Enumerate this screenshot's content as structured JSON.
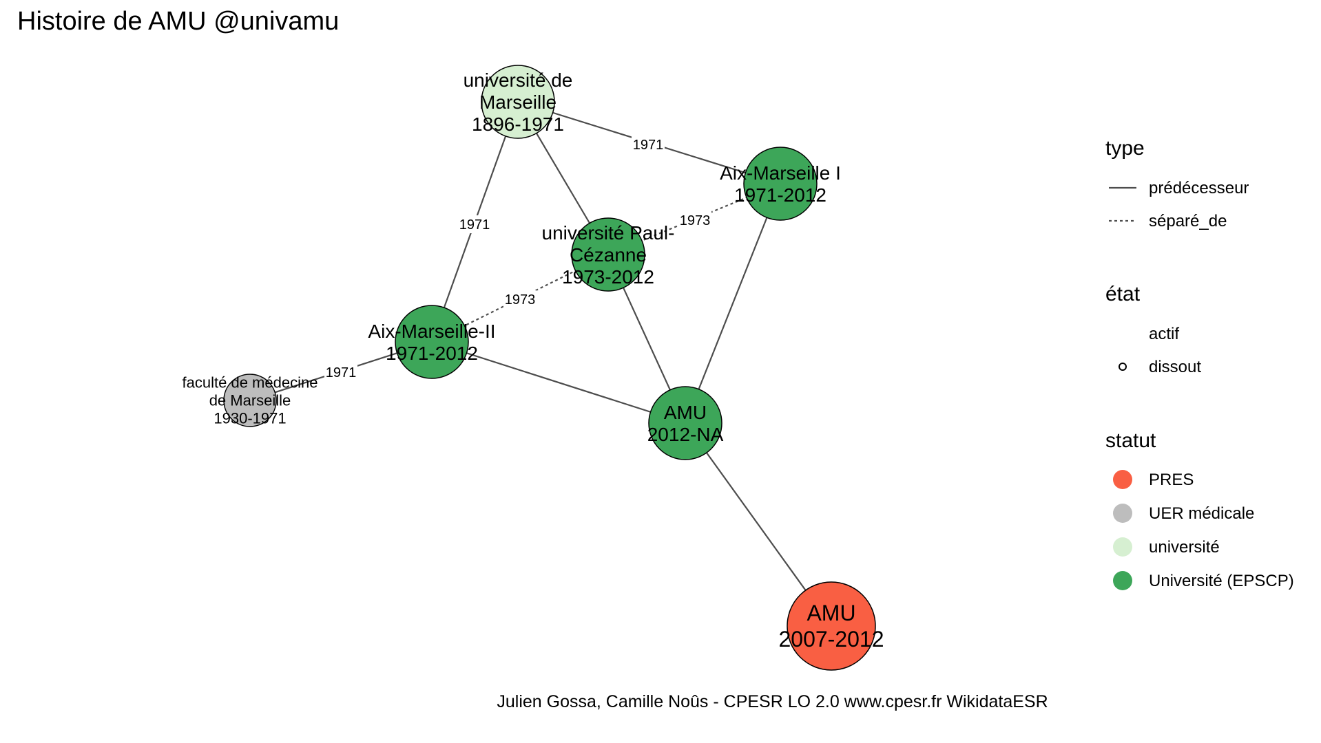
{
  "title": "Histoire de AMU @univamu",
  "caption": "Julien Gossa, Camille Noûs - CPESR LO 2.0 www.cpesr.fr WikidataESR",
  "colors": {
    "PRES": "#f95f43",
    "UER médicale": "#bdbdbd",
    "université": "#d6efd1",
    "Université (EPSCP)": "#3da659",
    "edge": "#4d4d4d"
  },
  "nodes": [
    {
      "id": "udm",
      "label": [
        "université de",
        "Marseille",
        "1896-1971"
      ],
      "statut": "université",
      "etat": "dissout"
    },
    {
      "id": "am1",
      "label": [
        "Aix-Marseille I",
        "1971-2012"
      ],
      "statut": "Université (EPSCP)",
      "etat": "dissout"
    },
    {
      "id": "upc",
      "label": [
        "université Paul-",
        "Cézanne",
        "1973-2012"
      ],
      "statut": "Université (EPSCP)",
      "etat": "dissout"
    },
    {
      "id": "am2",
      "label": [
        "Aix-Marseille-II",
        "1971-2012"
      ],
      "statut": "Université (EPSCP)",
      "etat": "dissout"
    },
    {
      "id": "fmm",
      "label": [
        "faculté de médecine",
        "de Marseille",
        "1930-1971"
      ],
      "statut": "UER médicale",
      "etat": "dissout"
    },
    {
      "id": "amu",
      "label": [
        "AMU",
        "2012-NA"
      ],
      "statut": "Université (EPSCP)",
      "etat": "actif"
    },
    {
      "id": "pres",
      "label": [
        "AMU",
        "2007-2012"
      ],
      "statut": "PRES",
      "etat": "dissout"
    }
  ],
  "edges": [
    {
      "from": "udm",
      "to": "am1",
      "type": "prédécesseur",
      "label": "1971"
    },
    {
      "from": "udm",
      "to": "am2",
      "type": "prédécesseur",
      "label": "1971"
    },
    {
      "from": "udm",
      "to": "upc",
      "type": "prédécesseur",
      "label": ""
    },
    {
      "from": "upc",
      "to": "am1",
      "type": "séparé_de",
      "label": "1973"
    },
    {
      "from": "am2",
      "to": "upc",
      "type": "séparé_de",
      "label": "1973"
    },
    {
      "from": "fmm",
      "to": "am2",
      "type": "prédécesseur",
      "label": "1971"
    },
    {
      "from": "am2",
      "to": "amu",
      "type": "prédécesseur",
      "label": ""
    },
    {
      "from": "upc",
      "to": "amu",
      "type": "prédécesseur",
      "label": ""
    },
    {
      "from": "am1",
      "to": "amu",
      "type": "prédécesseur",
      "label": ""
    },
    {
      "from": "amu",
      "to": "pres",
      "type": "prédécesseur",
      "label": ""
    }
  ],
  "legend": {
    "type": {
      "title": "type",
      "items": [
        "prédécesseur",
        "séparé_de"
      ]
    },
    "etat": {
      "title": "état",
      "items": [
        "actif",
        "dissout"
      ]
    },
    "statut": {
      "title": "statut",
      "items": [
        "PRES",
        "UER médicale",
        "université",
        "Université (EPSCP)"
      ]
    }
  }
}
